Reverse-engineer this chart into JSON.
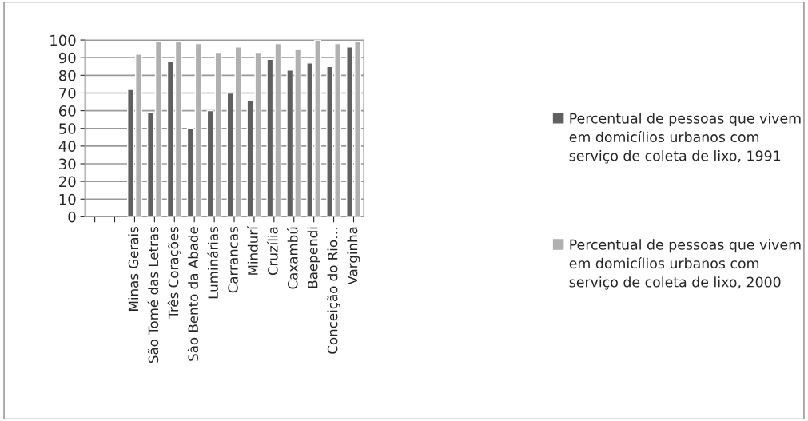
{
  "chart_data": {
    "type": "bar",
    "categories": [
      null,
      null,
      "Minas Gerais",
      "São Tomé das Letras",
      "Três Corações",
      "São Bento da Abade",
      "Luminárias",
      "Carrancas",
      "Mindurí",
      "Cruzília",
      "Caxambú",
      "Baependi",
      "Conceição do Rio…",
      "Varginha"
    ],
    "series": [
      {
        "name": "Percentual de pessoas que vivem em domicílios urbanos com serviço de coleta de lixo, 1991",
        "color": "#606060",
        "values": [
          null,
          null,
          72,
          59,
          88,
          50,
          60,
          70,
          66,
          89,
          83,
          87,
          85,
          96
        ]
      },
      {
        "name": "Percentual de pessoas que vivem em domicílios urbanos com serviço de coleta de lixo, 2000",
        "color": "#b0b0b0",
        "values": [
          null,
          null,
          92,
          99,
          99,
          98,
          93,
          96,
          93,
          98,
          95,
          100,
          98,
          99
        ]
      }
    ],
    "ylim": [
      0,
      100
    ],
    "yticks": [
      0,
      10,
      20,
      30,
      40,
      50,
      60,
      70,
      80,
      90,
      100
    ],
    "grid": "y",
    "legend": "right"
  }
}
